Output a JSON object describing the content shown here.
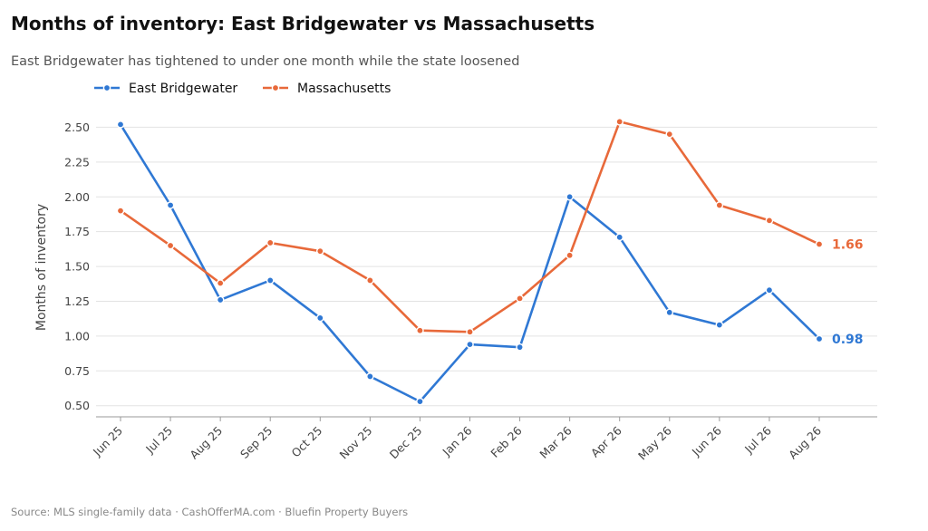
{
  "header": {
    "title": "Months of inventory: East Bridgewater vs Massachusetts",
    "subtitle": "East Bridgewater has tightened to under one month while the state loosened"
  },
  "footer": {
    "source": "Source: MLS single-family data  ·  CashOfferMA.com  ·  Bluefin Property Buyers"
  },
  "chart_data": {
    "type": "line",
    "title": "Months of inventory: East Bridgewater vs Massachusetts",
    "subtitle": "East Bridgewater has tightened to under one month while the state loosened",
    "xlabel": "",
    "ylabel": "Months of inventory",
    "categories": [
      "Jun 25",
      "Jul 25",
      "Aug 25",
      "Sep 25",
      "Oct 25",
      "Nov 25",
      "Dec 25",
      "Jan 26",
      "Feb 26",
      "Mar 26",
      "Apr 26",
      "May 26",
      "Jun 26",
      "Jul 26",
      "Aug 26"
    ],
    "ylim": [
      0.42,
      2.62
    ],
    "yticks": [
      0.5,
      0.75,
      1.0,
      1.25,
      1.5,
      1.75,
      2.0,
      2.25,
      2.5
    ],
    "ytick_labels": [
      "0.50",
      "0.75",
      "1.00",
      "1.25",
      "1.50",
      "1.75",
      "2.00",
      "2.25",
      "2.50"
    ],
    "grid": "horizontal",
    "legend": "top-left",
    "series": [
      {
        "name": "East Bridgewater",
        "color": "#2f78d4",
        "values": [
          2.52,
          1.94,
          1.26,
          1.4,
          1.13,
          0.71,
          0.53,
          0.94,
          0.92,
          2.0,
          1.71,
          1.17,
          1.08,
          1.33,
          0.98
        ],
        "end_label": "0.98"
      },
      {
        "name": "Massachusetts",
        "color": "#e8693a",
        "values": [
          1.9,
          1.65,
          1.38,
          1.67,
          1.61,
          1.4,
          1.04,
          1.03,
          1.27,
          1.58,
          2.54,
          2.45,
          1.94,
          1.83,
          1.66
        ],
        "end_label": "1.66"
      }
    ]
  }
}
